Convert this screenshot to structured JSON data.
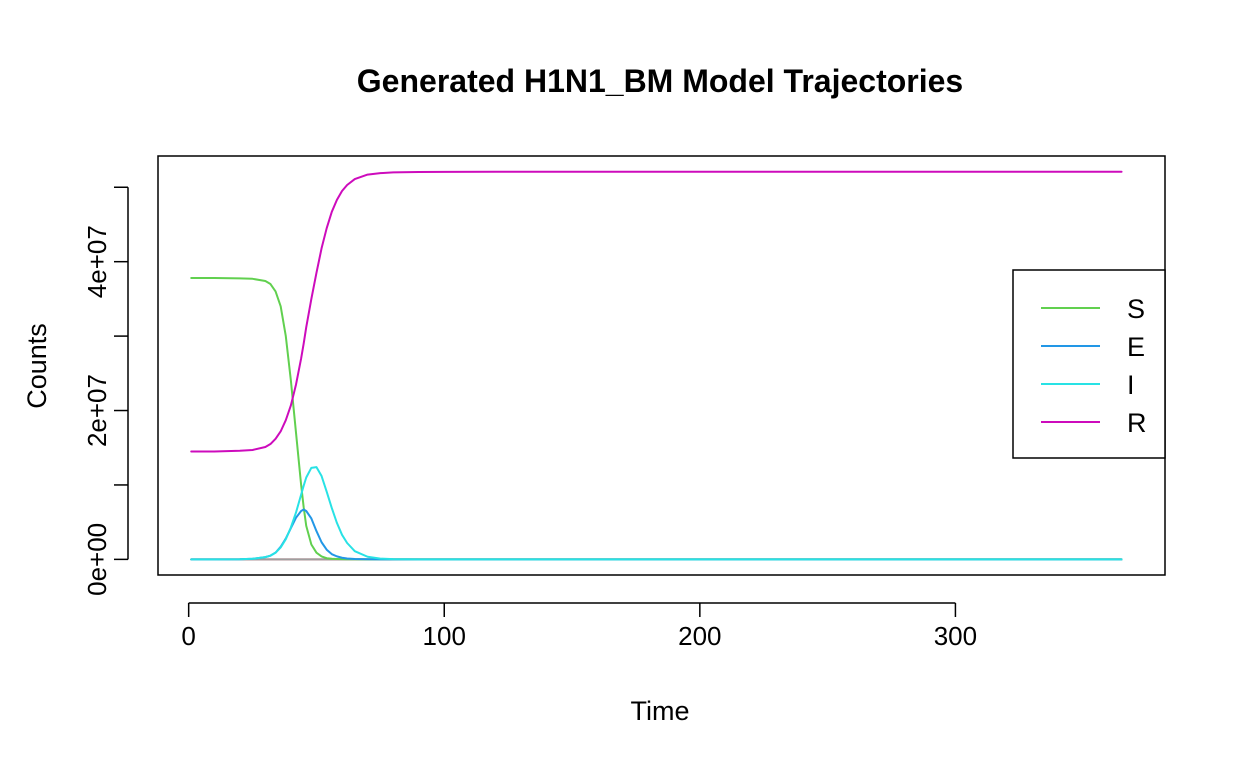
{
  "chart_data": {
    "type": "line",
    "title": "Generated H1N1_BM Model Trajectories",
    "xlabel": "Time",
    "ylabel": "Counts",
    "xlim": [
      -12,
      382
    ],
    "ylim": [
      -2100000,
      54200000
    ],
    "x_ticks": [
      0,
      100,
      200,
      300
    ],
    "x_tick_labels": [
      "0",
      "100",
      "200",
      "300"
    ],
    "y_ticks": [
      0,
      10000000,
      20000000,
      30000000,
      40000000,
      50000000
    ],
    "y_tick_labels": [
      "0e+00",
      "",
      "2e+07",
      "",
      "4e+07",
      ""
    ],
    "grid": false,
    "legend_position": "right",
    "x": [
      1,
      10,
      20,
      25,
      30,
      32,
      34,
      36,
      38,
      40,
      42,
      44,
      45,
      46,
      48,
      50,
      52,
      54,
      56,
      58,
      60,
      62,
      65,
      70,
      75,
      80,
      90,
      100,
      120,
      150,
      200,
      250,
      300,
      365
    ],
    "series": [
      {
        "name": "S",
        "color": "#61D04F",
        "values": [
          37800000,
          37800000,
          37750000,
          37700000,
          37400000,
          37000000,
          36000000,
          34000000,
          30000000,
          24000000,
          17000000,
          10000000,
          7000000,
          4500000,
          2000000,
          900000,
          400000,
          150000,
          80000,
          50000,
          30000,
          20000,
          10000,
          5000,
          3000,
          2000,
          1000,
          500,
          300,
          200,
          100,
          50,
          20,
          10
        ]
      },
      {
        "name": "E",
        "color": "#2297E6",
        "values": [
          0,
          0,
          20000,
          80000,
          300000,
          500000,
          900000,
          1700000,
          2800000,
          4200000,
          5600000,
          6500000,
          6700000,
          6500000,
          5500000,
          3800000,
          2300000,
          1300000,
          700000,
          400000,
          220000,
          120000,
          50000,
          15000,
          5000,
          2000,
          500,
          100,
          0,
          0,
          0,
          0,
          0,
          0
        ]
      },
      {
        "name": "I",
        "color": "#28E2E5",
        "values": [
          0,
          0,
          20000,
          80000,
          300000,
          500000,
          900000,
          1600000,
          2700000,
          4300000,
          6300000,
          8700000,
          9900000,
          11000000,
          12300000,
          12400000,
          11200000,
          9100000,
          6900000,
          4900000,
          3300000,
          2200000,
          1100000,
          350000,
          100000,
          30000,
          5000,
          1000,
          0,
          0,
          0,
          0,
          0,
          0
        ]
      },
      {
        "name": "R",
        "color": "#CD0BBC",
        "values": [
          14500000,
          14500000,
          14600000,
          14700000,
          15100000,
          15500000,
          16200000,
          17200000,
          18700000,
          20700000,
          23500000,
          27000000,
          29000000,
          31200000,
          35000000,
          38500000,
          41800000,
          44500000,
          46700000,
          48300000,
          49500000,
          50300000,
          51100000,
          51700000,
          51900000,
          52000000,
          52050000,
          52070000,
          52080000,
          52080000,
          52080000,
          52080000,
          52080000,
          52080000
        ]
      },
      {
        "color": "#DF536B",
        "values": [
          0,
          0,
          0,
          0,
          0,
          0,
          0,
          0,
          0,
          0,
          0,
          0,
          0,
          0,
          0,
          0,
          0,
          0,
          0,
          0,
          0,
          0,
          0,
          0,
          0,
          0,
          0,
          0,
          0,
          0,
          0,
          0,
          0,
          0
        ]
      },
      {
        "color": "#9E9E9E",
        "values": [
          0,
          0,
          0,
          0,
          0,
          0,
          0,
          0,
          0,
          0,
          0,
          0,
          0,
          0,
          0,
          0,
          0,
          0,
          0,
          0,
          0,
          0,
          0,
          0,
          0,
          0,
          0,
          0,
          0,
          0,
          0,
          0,
          0,
          0
        ]
      }
    ]
  }
}
